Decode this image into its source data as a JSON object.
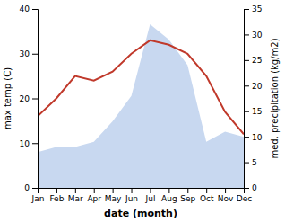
{
  "chart_data": {
    "type": "line",
    "xlabel": "date (month)",
    "ylabel": "max temp (C)",
    "y2label": "med. precipitation (kg/m2)",
    "categories": [
      "Jan",
      "Feb",
      "Mar",
      "Apr",
      "May",
      "Jun",
      "Jul",
      "Aug",
      "Sep",
      "Oct",
      "Nov",
      "Dec"
    ],
    "series": [
      {
        "type": "area",
        "axis": "y2",
        "color": "#c8d8f0",
        "values": [
          7,
          8,
          8,
          9,
          13,
          18,
          32,
          29,
          24,
          9,
          11,
          10
        ]
      },
      {
        "type": "line",
        "color": "#c0392b",
        "values": [
          16,
          20,
          25,
          24,
          26,
          30,
          33,
          32,
          30,
          25,
          17,
          12
        ]
      }
    ],
    "ylim": [
      0,
      40
    ],
    "yticks": [
      0,
      10,
      20,
      30,
      40
    ],
    "y2lim": [
      0,
      35
    ],
    "y2ticks": [
      0,
      5,
      10,
      15,
      20,
      25,
      30,
      35
    ],
    "grid": false
  }
}
